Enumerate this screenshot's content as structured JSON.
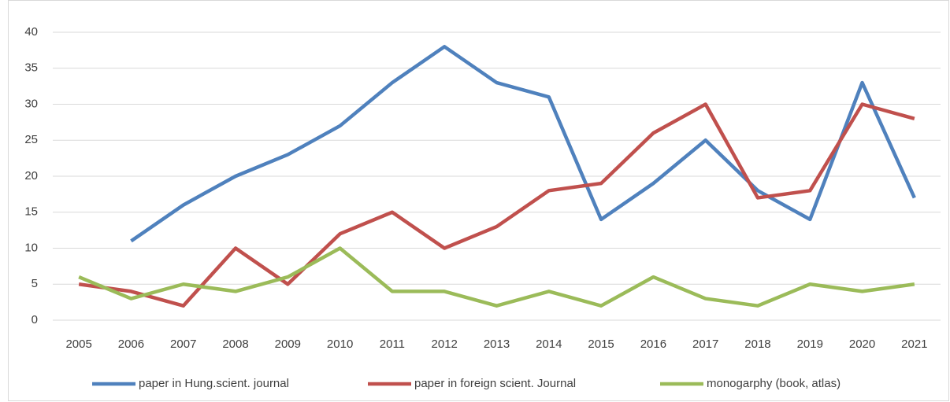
{
  "chart_data": {
    "type": "line",
    "categories": [
      "2005",
      "2006",
      "2007",
      "2008",
      "2009",
      "2010",
      "2011",
      "2012",
      "2013",
      "2014",
      "2015",
      "2016",
      "2017",
      "2018",
      "2019",
      "2020",
      "2021"
    ],
    "series": [
      {
        "name": "paper in Hung.scient. journal",
        "color": "#4f81bd",
        "values": [
          null,
          11,
          16,
          20,
          23,
          27,
          33,
          38,
          33,
          31,
          14,
          19,
          25,
          18,
          14,
          33,
          17
        ]
      },
      {
        "name": "paper in foreign scient. Journal",
        "color": "#c0504d",
        "values": [
          5,
          4,
          2,
          10,
          5,
          12,
          15,
          10,
          13,
          18,
          19,
          26,
          30,
          17,
          18,
          30,
          28
        ]
      },
      {
        "name": "monogarphy (book, atlas)",
        "color": "#9bbb59",
        "values": [
          6,
          3,
          5,
          4,
          6,
          10,
          4,
          4,
          2,
          4,
          2,
          6,
          3,
          2,
          5,
          4,
          5
        ]
      }
    ],
    "ylim": [
      0,
      40
    ],
    "yticks": [
      0,
      5,
      10,
      15,
      20,
      25,
      30,
      35,
      40
    ],
    "grid": true,
    "legend": "bottom"
  }
}
